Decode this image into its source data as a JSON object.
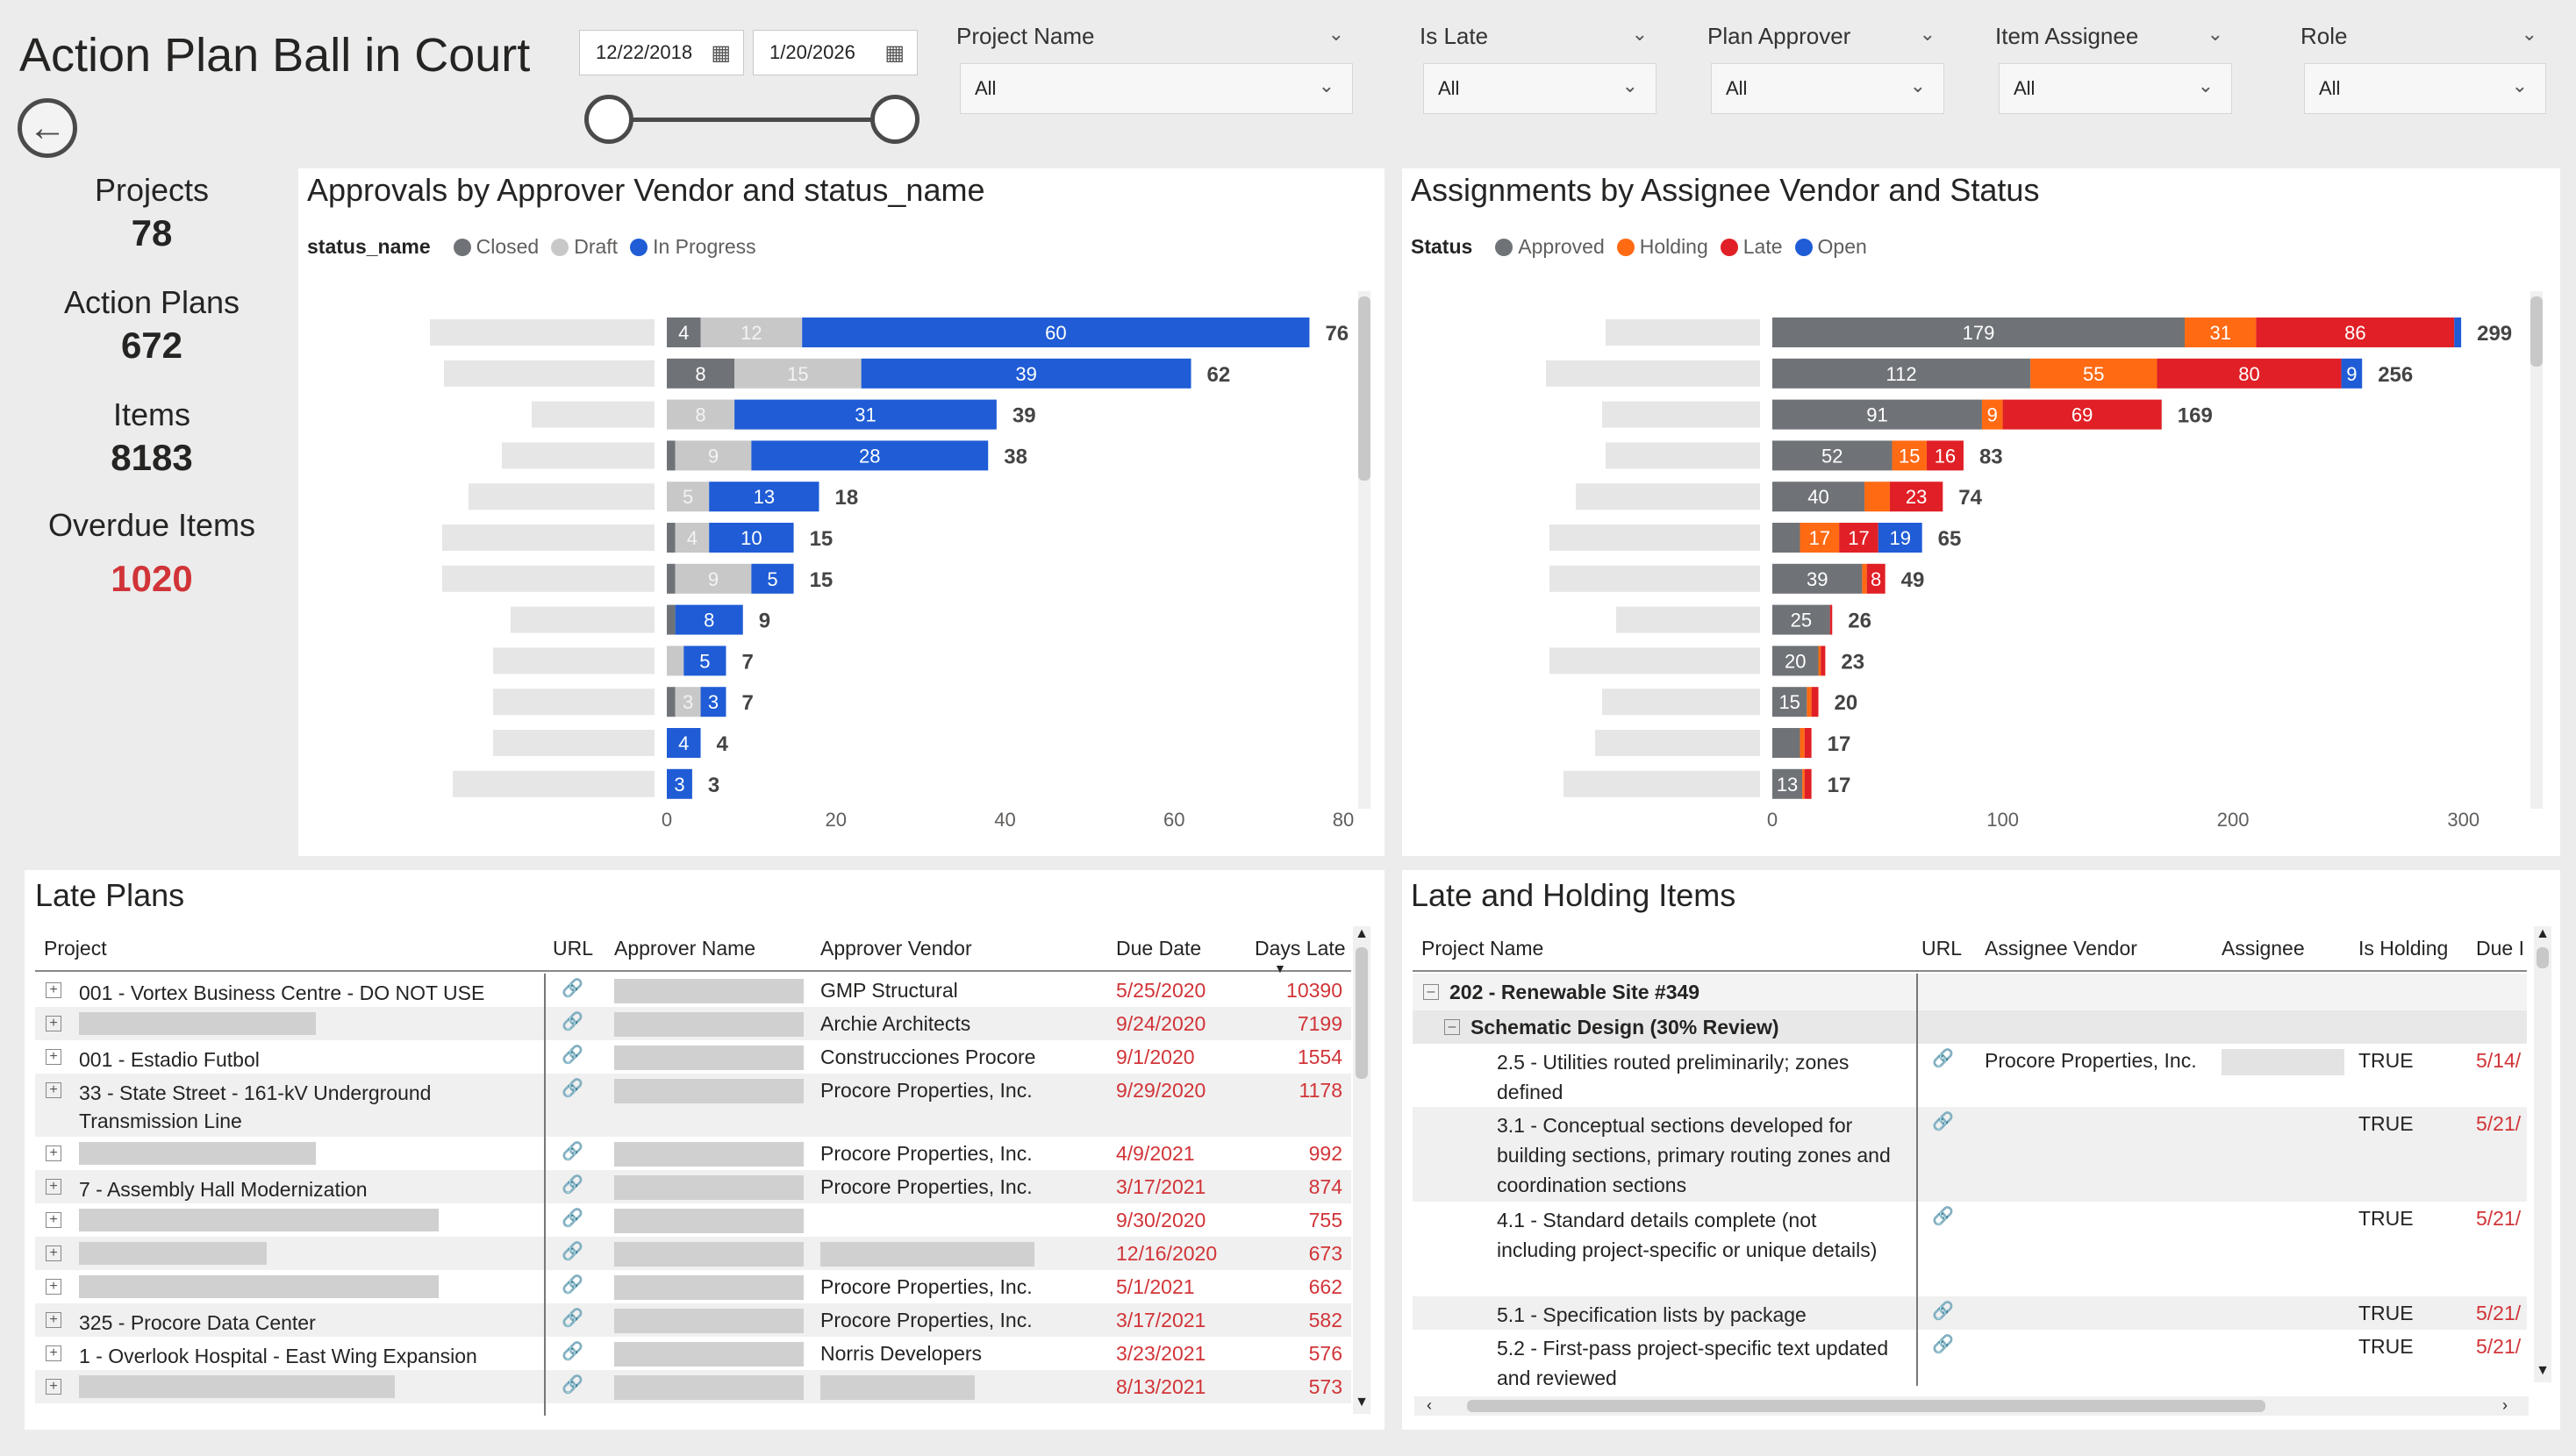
{
  "title": "Action Plan Ball in Court",
  "date_range": {
    "start": "12/22/2018",
    "end": "1/20/2026"
  },
  "filters": [
    {
      "label": "Project Name",
      "value": "All"
    },
    {
      "label": "Is Late",
      "value": "All"
    },
    {
      "label": "Plan Approver",
      "value": "All"
    },
    {
      "label": "Item Assignee",
      "value": "All"
    },
    {
      "label": "Role",
      "value": "All"
    }
  ],
  "kpis": [
    {
      "label": "Projects",
      "value": "78"
    },
    {
      "label": "Action Plans",
      "value": "672"
    },
    {
      "label": "Items",
      "value": "8183"
    },
    {
      "label": "Overdue Items",
      "value": "1020",
      "color": "#d13438"
    }
  ],
  "colors": {
    "closed": "#6f7378",
    "draft": "#c8c8c8",
    "in_progress": "#1f5cd6",
    "approved": "#6f7378",
    "holding": "#ff6a13",
    "late": "#e02026",
    "open": "#1f5cd6"
  },
  "chart_data": [
    {
      "type": "bar",
      "orientation": "horizontal-stacked",
      "title": "Approvals by Approver Vendor and status_name",
      "legend_title": "status_name",
      "series_names": [
        "Closed",
        "Draft",
        "In Progress"
      ],
      "rows": [
        {
          "values": [
            4,
            12,
            60
          ],
          "total": 76
        },
        {
          "values": [
            8,
            15,
            39
          ],
          "total": 62
        },
        {
          "values": [
            0,
            8,
            31
          ],
          "total": 39
        },
        {
          "values": [
            1,
            9,
            28
          ],
          "total": 38
        },
        {
          "values": [
            0,
            5,
            13
          ],
          "total": 18
        },
        {
          "values": [
            1,
            4,
            10
          ],
          "total": 15
        },
        {
          "values": [
            1,
            9,
            5
          ],
          "total": 15
        },
        {
          "values": [
            1,
            0,
            8
          ],
          "total": 9
        },
        {
          "values": [
            0,
            2,
            5
          ],
          "total": 7
        },
        {
          "values": [
            1,
            3,
            3
          ],
          "total": 7
        },
        {
          "values": [
            0,
            0,
            4
          ],
          "total": 4
        },
        {
          "values": [
            0,
            0,
            3
          ],
          "total": 3
        }
      ],
      "labels": [
        [
          "4",
          "12",
          "60"
        ],
        [
          "8",
          "15",
          "39"
        ],
        [
          "",
          "8",
          "31"
        ],
        [
          "",
          "9",
          "28"
        ],
        [
          "",
          "5",
          "13"
        ],
        [
          "",
          "4",
          "10"
        ],
        [
          "",
          "9",
          "5"
        ],
        [
          "",
          "",
          "8"
        ],
        [
          "",
          "",
          "5"
        ],
        [
          "",
          "3",
          "3"
        ],
        [
          "",
          "",
          "4"
        ],
        [
          "",
          "",
          "3"
        ]
      ],
      "x_ticks": [
        "0",
        "20",
        "40",
        "60",
        "80"
      ],
      "xlim": [
        0,
        80
      ]
    },
    {
      "type": "bar",
      "orientation": "horizontal-stacked",
      "title": "Assignments by Assignee Vendor and Status",
      "legend_title": "Status",
      "series_names": [
        "Approved",
        "Holding",
        "Late",
        "Open"
      ],
      "rows": [
        {
          "values": [
            179,
            31,
            86,
            3
          ],
          "total": 299
        },
        {
          "values": [
            112,
            55,
            80,
            9
          ],
          "total": 256
        },
        {
          "values": [
            91,
            9,
            69,
            0
          ],
          "total": 169
        },
        {
          "values": [
            52,
            15,
            16,
            0
          ],
          "total": 83
        },
        {
          "values": [
            40,
            11,
            23,
            0
          ],
          "total": 74
        },
        {
          "values": [
            12,
            17,
            17,
            19
          ],
          "total": 65
        },
        {
          "values": [
            39,
            2,
            8,
            0
          ],
          "total": 49
        },
        {
          "values": [
            25,
            0,
            1,
            0
          ],
          "total": 26
        },
        {
          "values": [
            20,
            1,
            2,
            0
          ],
          "total": 23
        },
        {
          "values": [
            15,
            2,
            3,
            0
          ],
          "total": 20
        },
        {
          "values": [
            12,
            2,
            3,
            0
          ],
          "total": 17
        },
        {
          "values": [
            13,
            1,
            3,
            0
          ],
          "total": 17
        }
      ],
      "labels": [
        [
          "179",
          "31",
          "86",
          ""
        ],
        [
          "112",
          "55",
          "80",
          "9"
        ],
        [
          "91",
          "9",
          "69",
          ""
        ],
        [
          "52",
          "15",
          "16",
          ""
        ],
        [
          "40",
          "",
          "23",
          ""
        ],
        [
          "",
          "17",
          "17",
          "19"
        ],
        [
          "39",
          "",
          "8",
          ""
        ],
        [
          "25",
          "",
          "",
          ""
        ],
        [
          "20",
          "",
          "",
          ""
        ],
        [
          "15",
          "",
          "",
          ""
        ],
        [
          "",
          "",
          "",
          ""
        ],
        [
          "13",
          "",
          "",
          ""
        ]
      ],
      "x_ticks": [
        "0",
        "100",
        "200",
        "300"
      ],
      "xlim": [
        0,
        310
      ]
    }
  ],
  "late_plans": {
    "title": "Late Plans",
    "columns": [
      "Project",
      "URL",
      "Approver Name",
      "Approver Vendor",
      "Due Date",
      "Days Late"
    ],
    "rows": [
      {
        "project": "001 - Vortex Business Centre - DO NOT USE",
        "vendor": "GMP Structural",
        "due": "5/25/2020",
        "days": "10390"
      },
      {
        "project": "",
        "vendor": "Archie Architects",
        "due": "9/24/2020",
        "days": "7199"
      },
      {
        "project": "001 - Estadio Futbol",
        "vendor": "Construcciones Procore",
        "due": "9/1/2020",
        "days": "1554"
      },
      {
        "project": "33 - State Street - 161-kV Underground Transmission Line",
        "vendor": "Procore Properties, Inc.",
        "due": "9/29/2020",
        "days": "1178"
      },
      {
        "project": "",
        "vendor": "Procore Properties, Inc.",
        "due": "4/9/2021",
        "days": "992"
      },
      {
        "project": "7 - Assembly Hall Modernization",
        "vendor": "Procore Properties, Inc.",
        "due": "3/17/2021",
        "days": "874"
      },
      {
        "project": "",
        "vendor": "",
        "due": "9/30/2020",
        "days": "755"
      },
      {
        "project": "",
        "vendor": "",
        "due": "12/16/2020",
        "days": "673"
      },
      {
        "project": "",
        "vendor": "Procore Properties, Inc.",
        "due": "5/1/2021",
        "days": "662"
      },
      {
        "project": "325 - Procore Data Center",
        "vendor": "Procore Properties, Inc.",
        "due": "3/17/2021",
        "days": "582"
      },
      {
        "project": "1 - Overlook Hospital - East Wing Expansion",
        "vendor": "Norris Developers",
        "due": "3/23/2021",
        "days": "576"
      },
      {
        "project": "",
        "vendor": "",
        "due": "8/13/2021",
        "days": "573"
      }
    ]
  },
  "late_holding": {
    "title": "Late and Holding Items",
    "columns": [
      "Project Name",
      "URL",
      "Assignee Vendor",
      "Assignee",
      "Is Holding",
      "Due I"
    ],
    "group": "202 - Renewable Site #349",
    "subgroup": "Schematic Design (30% Review)",
    "rows": [
      {
        "name": "2.5 - Utilities routed preliminarily; zones defined",
        "vendor": "Procore Properties, Inc.",
        "holding": "TRUE",
        "due": "5/14/"
      },
      {
        "name": "3.1 - Conceptual sections developed for building sections, primary routing zones and coordination sections",
        "vendor": "",
        "holding": "TRUE",
        "due": "5/21/"
      },
      {
        "name": "4.1 - Standard details complete (not including project-specific or unique details)",
        "vendor": "",
        "holding": "TRUE",
        "due": "5/21/"
      },
      {
        "name": "5.1 - Specification lists by package",
        "vendor": "",
        "holding": "TRUE",
        "due": "5/21/"
      },
      {
        "name": "5.2 - First-pass project-specific text updated and reviewed",
        "vendor": "",
        "holding": "TRUE",
        "due": "5/21/"
      }
    ]
  }
}
